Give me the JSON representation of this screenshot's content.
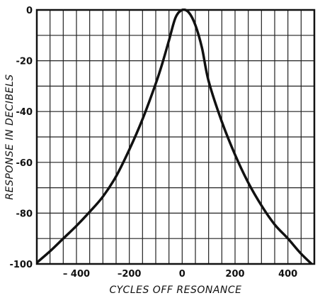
{
  "chart_data": {
    "type": "line",
    "title": "",
    "xlabel": "CYCLES OFF RESONANCE",
    "ylabel": "RESPONSE IN DECIBELS",
    "xlim": [
      -550,
      500
    ],
    "ylim": [
      -100,
      0
    ],
    "grid": true,
    "x_ticks": [
      -400,
      -200,
      0,
      200,
      400
    ],
    "x_tick_labels": [
      "– 400",
      "–200",
      "0",
      "200",
      "400"
    ],
    "y_ticks": [
      0,
      -20,
      -40,
      -60,
      -80,
      -100
    ],
    "y_tick_labels": [
      "0",
      "-20",
      "-40",
      "-60",
      "-80",
      "-100"
    ],
    "series": [
      {
        "x": [
          -550,
          -500,
          -450,
          -400,
          -350,
          -300,
          -250,
          -200,
          -150,
          -100,
          -75,
          -50,
          -25,
          0,
          25,
          50,
          75,
          100,
          150,
          200,
          250,
          300,
          350,
          400,
          450,
          500
        ],
        "y": [
          -99.5,
          -95,
          -90,
          -85,
          -79.5,
          -73.5,
          -65.5,
          -55,
          -43,
          -29,
          -21,
          -12,
          -3,
          0,
          -1,
          -6,
          -15,
          -28,
          -44,
          -57,
          -68,
          -77,
          -84.5,
          -90,
          -96,
          -101
        ]
      }
    ]
  }
}
